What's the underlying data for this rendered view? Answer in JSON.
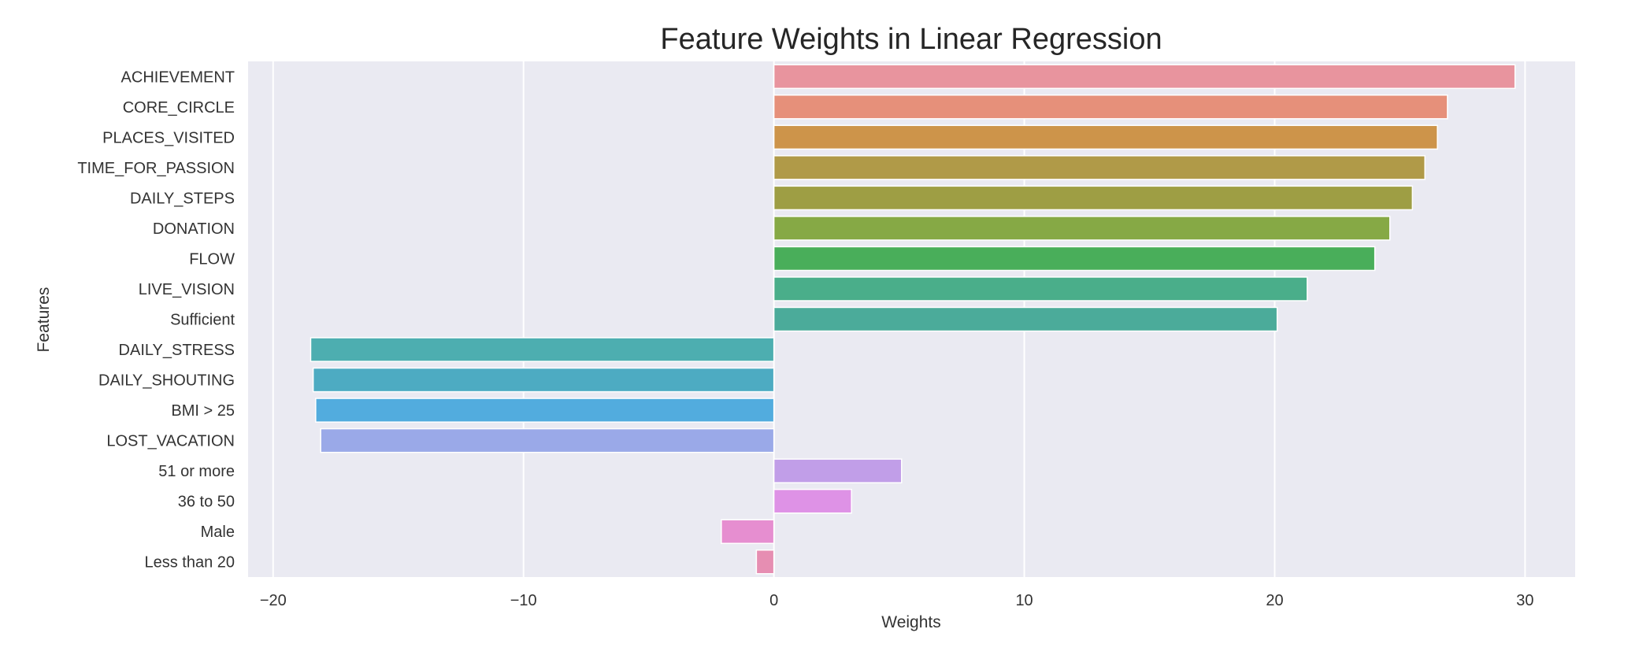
{
  "chart_data": {
    "type": "bar",
    "orientation": "horizontal",
    "title": "Feature Weights in Linear Regression",
    "xlabel": "Weights",
    "ylabel": "Features",
    "xlim": [
      -21,
      32
    ],
    "xticks": [
      -20,
      -10,
      0,
      10,
      20,
      30
    ],
    "xtick_labels": [
      "−20",
      "−10",
      "0",
      "10",
      "20",
      "30"
    ],
    "grid": true,
    "categories": [
      "ACHIEVEMENT",
      "CORE_CIRCLE",
      "PLACES_VISITED",
      "TIME_FOR_PASSION",
      "DAILY_STEPS",
      "DONATION",
      "FLOW",
      "LIVE_VISION",
      "Sufficient",
      "DAILY_STRESS",
      "DAILY_SHOUTING",
      "BMI > 25",
      "LOST_VACATION",
      "51 or more",
      "36 to 50",
      "Male",
      "Less than 20"
    ],
    "values": [
      29.6,
      26.9,
      26.5,
      26.0,
      25.5,
      24.6,
      24.0,
      21.3,
      20.1,
      -18.5,
      -18.4,
      -18.3,
      -18.1,
      5.1,
      3.1,
      -2.1,
      -0.7
    ],
    "colors": [
      "#e8949e",
      "#e6907a",
      "#cd944a",
      "#b09a48",
      "#9e9e44",
      "#86a945",
      "#49ae5a",
      "#4aae8a",
      "#4bab9a",
      "#4daeb0",
      "#4dabc2",
      "#52acde",
      "#9aa9e8",
      "#c19ee8",
      "#de92e6",
      "#e68ed0",
      "#e68eb2"
    ]
  }
}
